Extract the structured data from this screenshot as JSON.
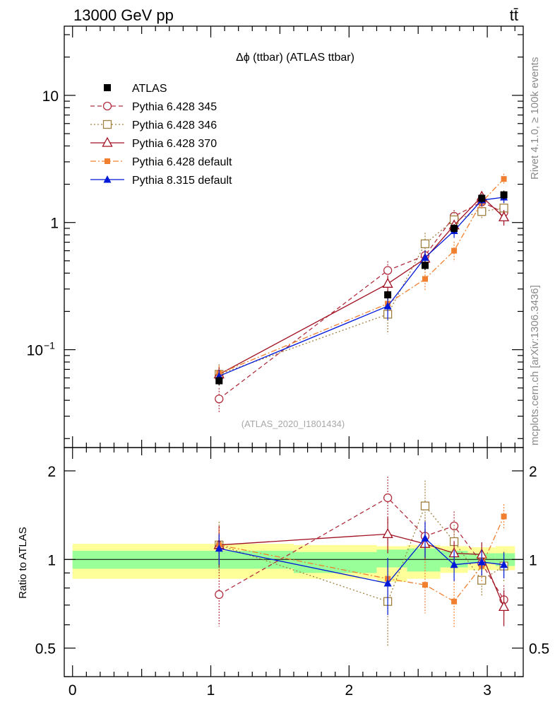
{
  "header": {
    "left": "13000 GeV pp",
    "right": "tt̄"
  },
  "side": {
    "rivet": "Rivet 4.1.0, ≥ 100k events",
    "mcplots": "mcplots.cern.ch [arXiv:1306.3436]"
  },
  "chart_data": {
    "type": "line",
    "title": "Δϕ (ttbar) (ATLAS ttbar)",
    "watermark": "(ATLAS_2020_I1801434)",
    "ylabel_ratio": "Ratio to ATLAS",
    "xlim": [
      -0.06,
      3.26
    ],
    "ylim_main": [
      0.017,
      35
    ],
    "ylim_ratio": [
      0.4,
      2.4
    ],
    "yscale_main": "log",
    "yscale_ratio": "log",
    "x_ticks": [
      0,
      1,
      2,
      3
    ],
    "x_tick_labels": [
      "0",
      "1",
      "2",
      "3"
    ],
    "main_y_ticks": [
      0.1,
      1,
      10
    ],
    "main_y_tick_labels": [
      "10",
      "1",
      "10"
    ],
    "main_y_tick_exp": "−1",
    "ratio_y_ticks": [
      0.5,
      1,
      2
    ],
    "ratio_y_tick_labels": [
      "0.5",
      "1",
      "2"
    ],
    "legend_position": "top-left",
    "data": {
      "name": "ATLAS",
      "x": [
        1.06,
        2.28,
        2.55,
        2.76,
        2.96,
        3.12
      ],
      "y": [
        0.057,
        0.27,
        0.46,
        0.9,
        1.55,
        1.65
      ],
      "band_edges": [
        0.0,
        1.6,
        2.2,
        2.42,
        2.66,
        2.86,
        3.06,
        3.2
      ],
      "band_inner_lo": [
        0.93,
        0.9,
        0.94,
        0.91,
        0.94,
        0.97,
        0.95
      ],
      "band_inner_hi": [
        1.07,
        1.06,
        1.08,
        1.09,
        1.07,
        1.05,
        1.05
      ],
      "band_outer_lo": [
        0.86,
        0.86,
        0.84,
        0.86,
        0.9,
        0.92,
        0.92
      ],
      "band_outer_hi": [
        1.13,
        1.12,
        1.11,
        1.12,
        1.11,
        1.1,
        1.11
      ]
    },
    "series": [
      {
        "name": "Pythia 6.428 345",
        "color": "#b03040",
        "dash": "6,4",
        "marker": "circle-open",
        "y": [
          0.041,
          0.42,
          0.55,
          1.12,
          1.45,
          1.2
        ],
        "yerr_rel": [
          0.22,
          0.18,
          0.16,
          0.12,
          0.1,
          0.12
        ],
        "ratio": [
          0.76,
          1.62,
          1.2,
          1.3,
          0.97,
          0.73
        ]
      },
      {
        "name": "Pythia 6.428 346",
        "color": "#a08040",
        "dash": "2,3",
        "marker": "square-open",
        "y": [
          0.064,
          0.19,
          0.68,
          1.05,
          1.22,
          1.3
        ],
        "yerr_rel": [
          0.2,
          0.3,
          0.22,
          0.14,
          0.12,
          0.12
        ],
        "ratio": [
          1.12,
          0.72,
          1.52,
          1.15,
          0.85,
          0.95
        ]
      },
      {
        "name": "Pythia 6.428 370",
        "color": "#a01020",
        "dash": "",
        "marker": "triangle-open",
        "y": [
          0.064,
          0.33,
          0.52,
          0.95,
          1.6,
          1.1
        ],
        "yerr_rel": [
          0.16,
          0.14,
          0.12,
          0.1,
          0.1,
          0.14
        ],
        "ratio": [
          1.12,
          1.22,
          1.13,
          1.05,
          1.04,
          0.69
        ]
      },
      {
        "name": "Pythia 6.428 default",
        "color": "#f08030",
        "dash": "8,3,2,3",
        "marker": "square-filled",
        "y": [
          0.065,
          0.23,
          0.36,
          0.6,
          1.45,
          2.2
        ],
        "yerr_rel": [
          0.14,
          0.16,
          0.2,
          0.18,
          0.12,
          0.1
        ],
        "ratio": [
          1.12,
          0.86,
          0.82,
          0.72,
          0.95,
          1.4
        ]
      },
      {
        "name": "Pythia 8.315 default",
        "color": "#0018d8",
        "dash": "",
        "marker": "triangle-filled",
        "y": [
          0.062,
          0.22,
          0.53,
          0.86,
          1.5,
          1.58
        ],
        "yerr_rel": [
          0.12,
          0.22,
          0.14,
          0.12,
          0.1,
          0.1
        ],
        "ratio": [
          1.09,
          0.83,
          1.18,
          0.96,
          0.98,
          0.96
        ]
      }
    ]
  }
}
